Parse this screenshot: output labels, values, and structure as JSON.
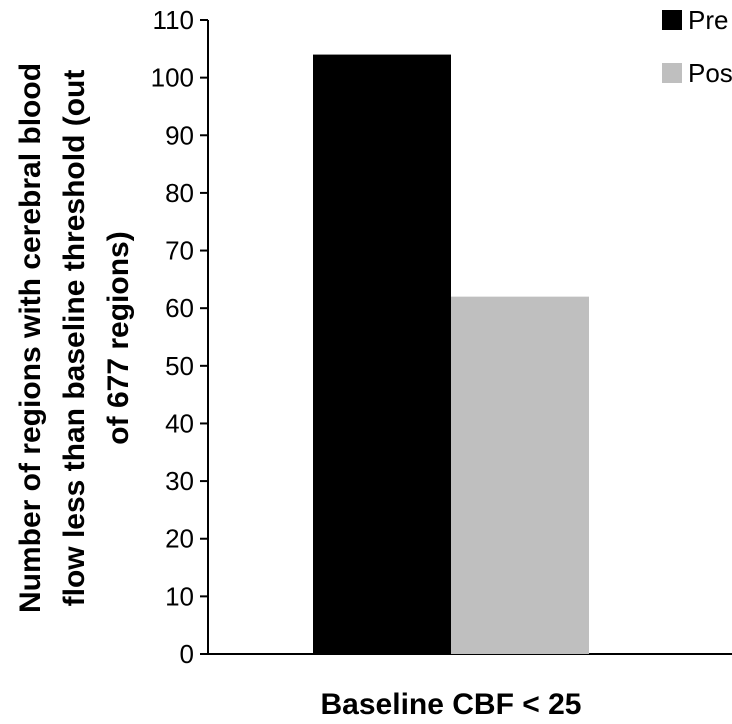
{
  "chart_data": {
    "type": "bar",
    "categories": [
      "Baseline CBF < 25"
    ],
    "series": [
      {
        "name": "Pre",
        "values": [
          104
        ],
        "color": "#000000"
      },
      {
        "name": "Pos",
        "values": [
          62
        ],
        "color": "#bfbfbf"
      }
    ],
    "xlabel": "Baseline CBF < 25",
    "ylabel_lines": [
      "Number of regions with cerebral blood",
      "flow less than baseline threshold (out",
      "of 677 regions)"
    ],
    "ylim": [
      0,
      110
    ],
    "yticks": [
      "0",
      "10",
      "20",
      "30",
      "40",
      "50",
      "60",
      "70",
      "80",
      "90",
      "100",
      "110"
    ],
    "legend_position": "top-right",
    "grid": false
  }
}
